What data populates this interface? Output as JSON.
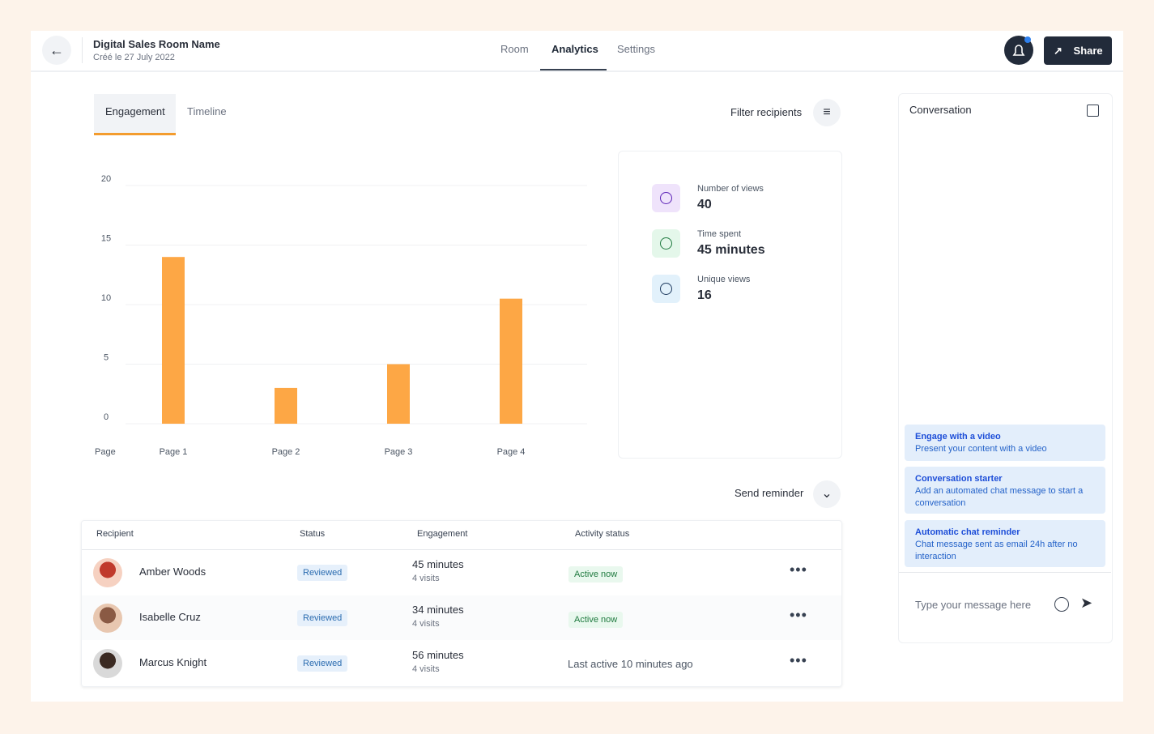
{
  "header": {
    "title": "Digital Sales Room Name",
    "subtitle": "Créé le 27 July 2022",
    "nav": [
      "Room",
      "Analytics",
      "Settings"
    ],
    "share": "Share"
  },
  "tabs": [
    "Engagement",
    "Timeline"
  ],
  "filter": "Filter recipients",
  "chart_data": {
    "type": "bar",
    "x_label": "Page",
    "categories": [
      "Page 1",
      "Page 2",
      "Page 3",
      "Page 4"
    ],
    "values": [
      14,
      3,
      5,
      10.5
    ],
    "color": "#fda745",
    "ylim": [
      0,
      20
    ],
    "yticks": [
      0,
      5,
      10,
      15,
      20
    ],
    "grid": true
  },
  "stats": [
    {
      "label": "Number of views",
      "value": 40
    },
    {
      "label": "Time spent",
      "value": "45 minutes"
    },
    {
      "label": "Unique views",
      "value": 16
    }
  ],
  "send_reminder": "Send reminder",
  "table": {
    "headers": [
      "Recipient",
      "Status",
      "Engagement",
      "Activity status"
    ],
    "rows": [
      [
        "Amber Woods",
        "Reviewed",
        "45 minutes",
        "4 visits",
        "Active now"
      ],
      [
        "Isabelle Cruz",
        "Reviewed",
        "34 minutes",
        "4 visits",
        "Active now"
      ],
      [
        "Marcus Knight",
        "Reviewed",
        "56 minutes",
        "4 visits",
        "Last active 10 minutes ago"
      ]
    ]
  },
  "conversation": {
    "title": "Conversation",
    "cards": [
      {
        "title": "Engage with a video",
        "text": "Present your content with a video"
      },
      {
        "title": "Conversation starter",
        "text": "Add an automated chat message to start a conversation"
      },
      {
        "title": "Automatic chat reminder",
        "text": "Chat message sent as email 24h after no interaction"
      }
    ],
    "placeholder": "Type your message here"
  }
}
